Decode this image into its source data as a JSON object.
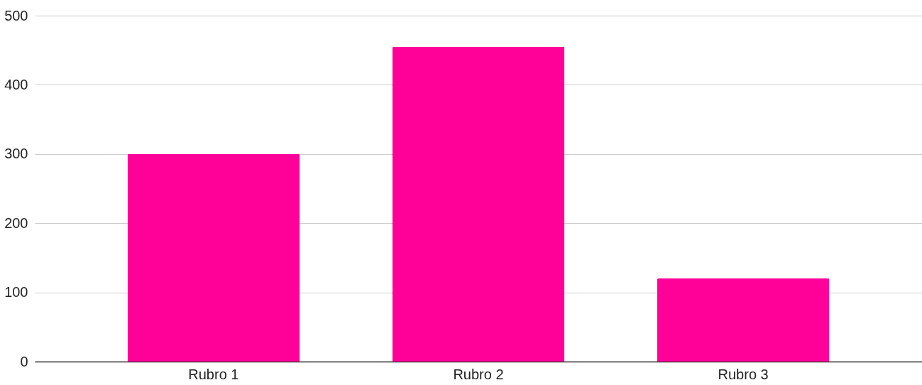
{
  "chart_data": {
    "type": "bar",
    "categories": [
      "Rubro 1",
      "Rubro 2",
      "Rubro 3"
    ],
    "values": [
      300,
      455,
      120
    ],
    "color": "#ff0099",
    "ylim": [
      0,
      500
    ],
    "yticks": [
      0,
      100,
      200,
      300,
      400,
      500
    ],
    "grid": "y"
  }
}
